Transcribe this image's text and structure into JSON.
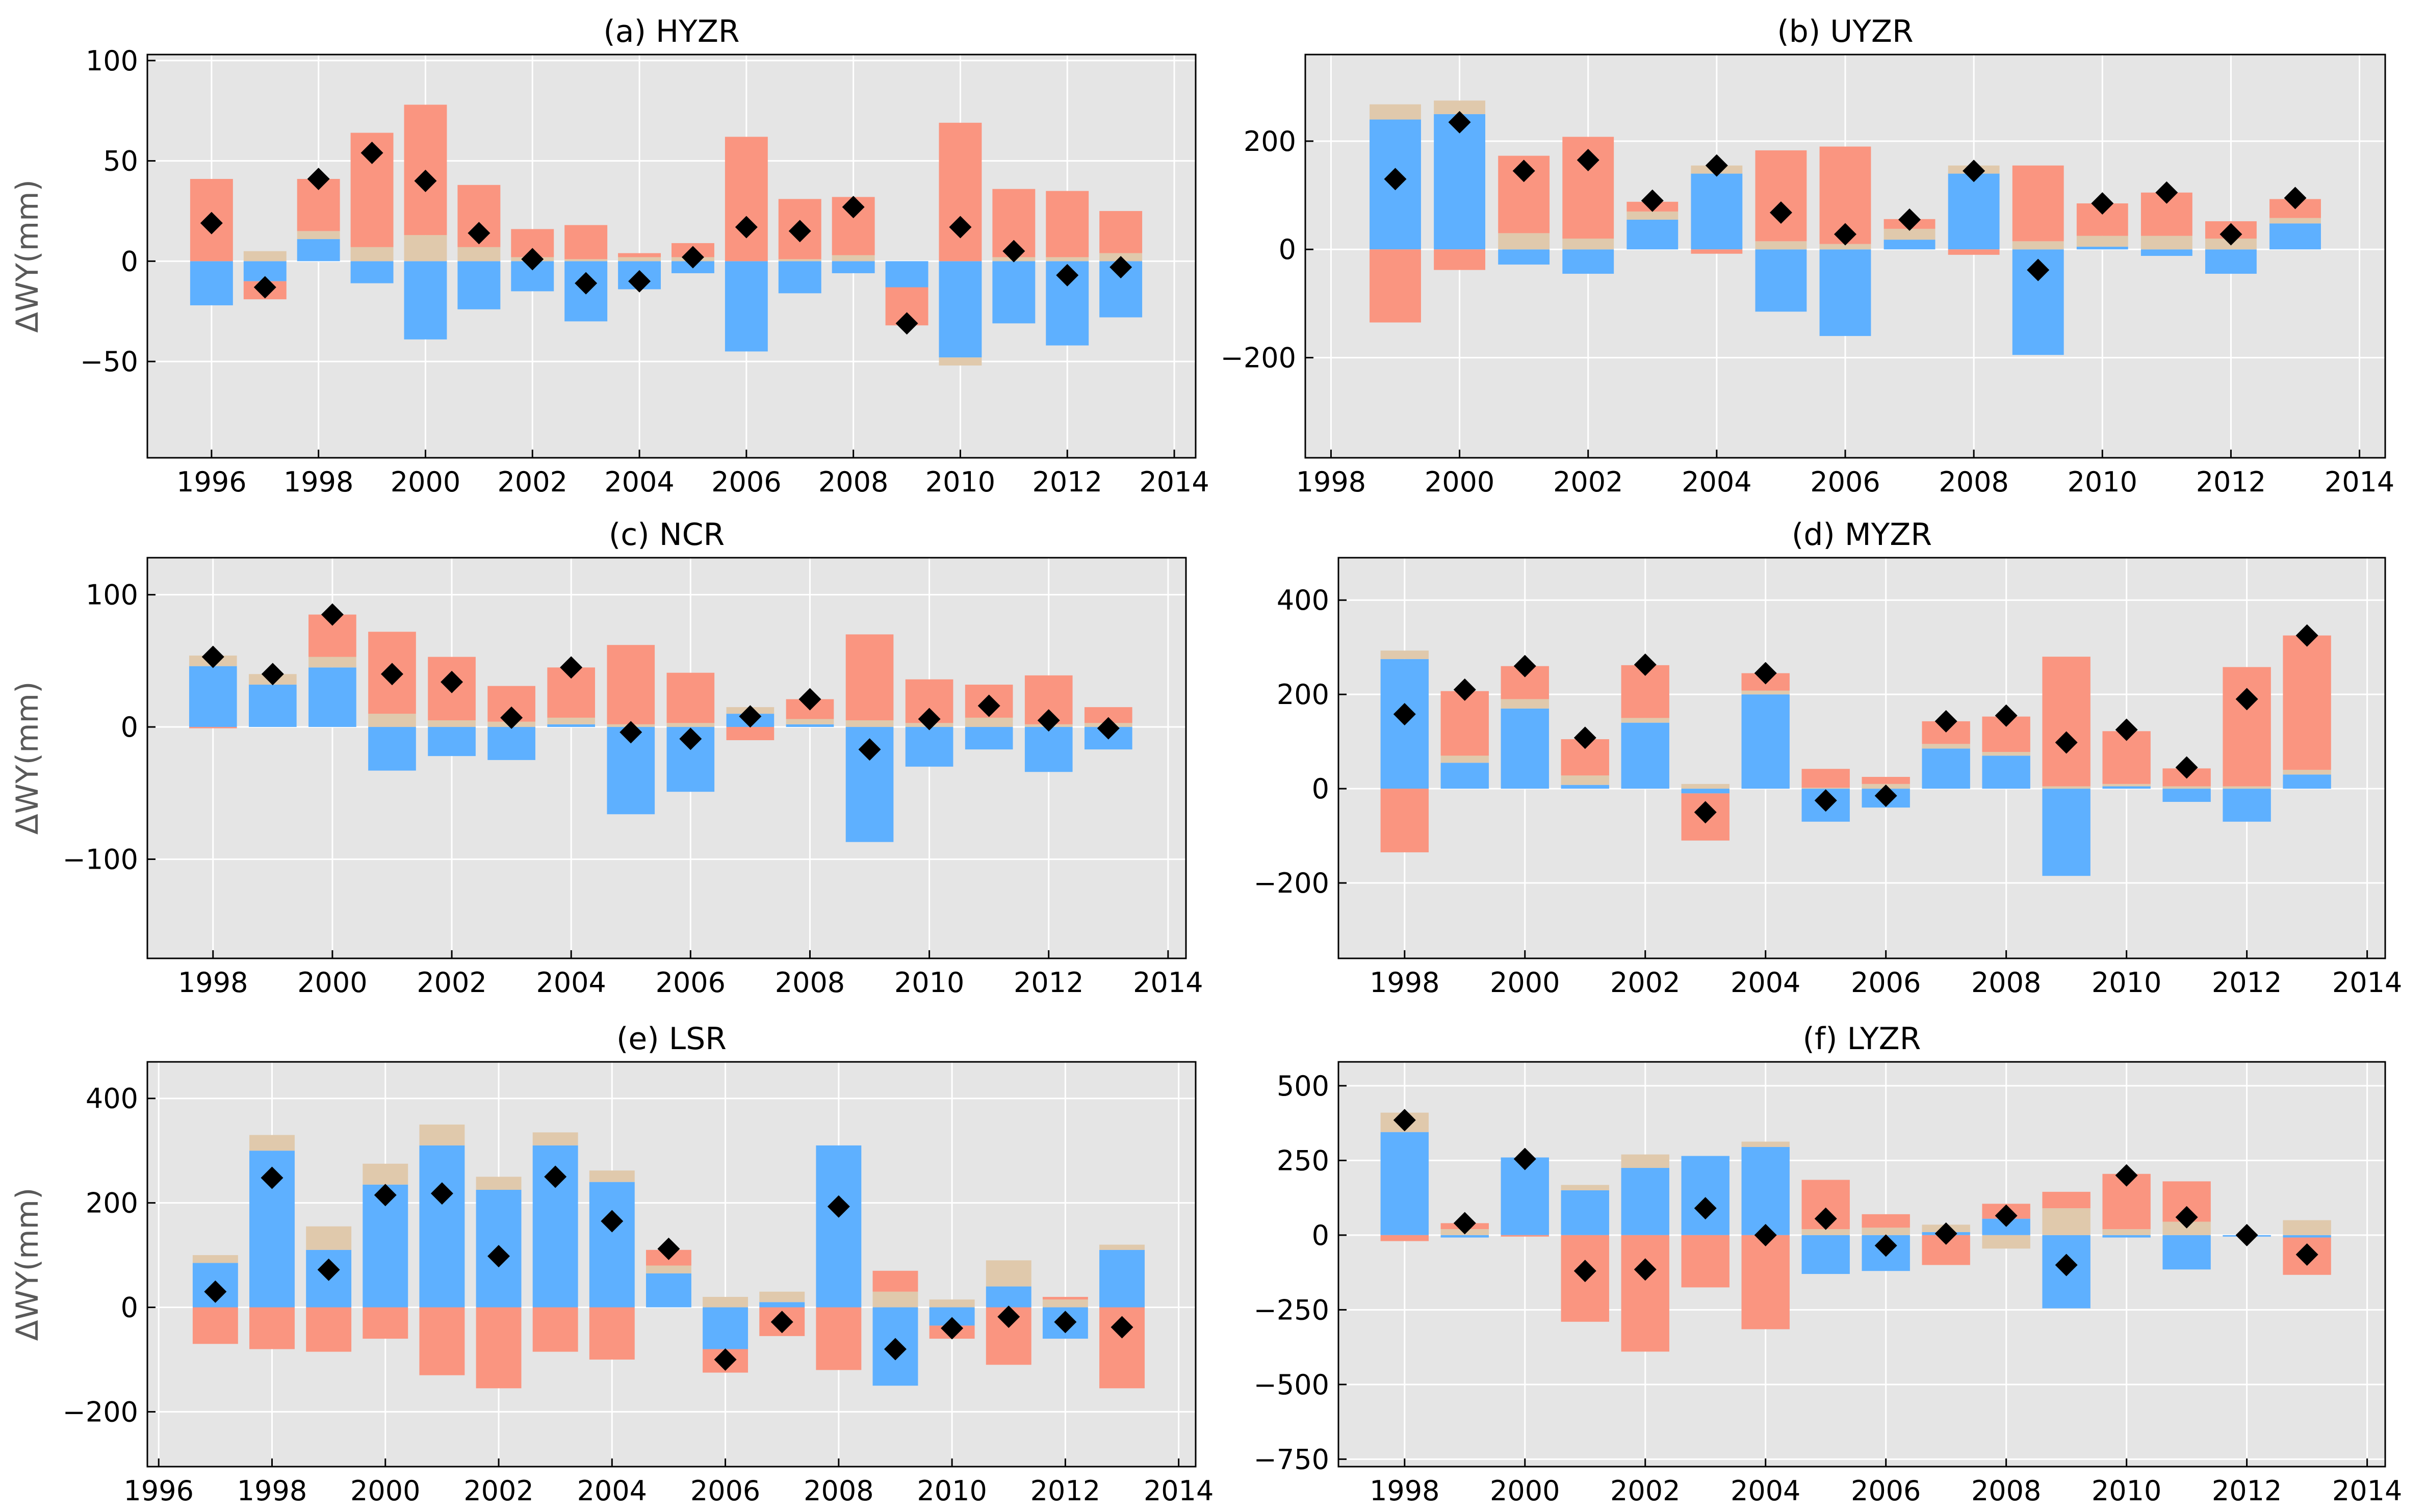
{
  "colors": {
    "background": "#e5e5e5",
    "grid": "#ffffff",
    "blue": "#5eb0ff",
    "red": "#fa9580",
    "tan": "#e0c9ac",
    "marker": "#000000"
  },
  "chart_data": [
    {
      "type": "bar",
      "stacked": true,
      "title": "(a) HYZR",
      "ylabel": "ΔWY(mm)",
      "xlim": [
        1994.8,
        2014.4
      ],
      "ylim": [
        -98,
        103
      ],
      "xticks": [
        1996,
        1998,
        2000,
        2002,
        2004,
        2006,
        2008,
        2010,
        2012,
        2014
      ],
      "yticks": [
        -50,
        0,
        50,
        100
      ],
      "x": [
        1996,
        1997,
        1998,
        1999,
        2000,
        2001,
        2002,
        2003,
        2004,
        2005,
        2006,
        2007,
        2008,
        2009,
        2010,
        2011,
        2012,
        2013
      ],
      "series": [
        {
          "color": "blue",
          "values": [
            -22,
            -10,
            11,
            -11,
            -39,
            -24,
            -15,
            -30,
            -14,
            -6,
            -45,
            -16,
            -6,
            -13,
            -48,
            -31,
            -42,
            -28
          ]
        },
        {
          "color": "tan",
          "values": [
            0,
            5,
            4,
            7,
            13,
            7,
            2,
            1,
            2,
            2,
            0,
            1,
            3,
            0,
            -4,
            2,
            2,
            4
          ]
        },
        {
          "color": "red",
          "values": [
            41,
            -9,
            26,
            57,
            65,
            31,
            14,
            17,
            2,
            7,
            62,
            30,
            29,
            -19,
            69,
            34,
            33,
            21
          ]
        },
        {
          "type": "scatter",
          "color": "marker",
          "values": [
            19,
            -13,
            41,
            54,
            40,
            14,
            1,
            -11,
            -10,
            2,
            17,
            15,
            27,
            -31,
            17,
            5,
            -7,
            -3
          ]
        }
      ]
    },
    {
      "type": "bar",
      "stacked": true,
      "title": "(b) UYZR",
      "ylabel": "",
      "xlim": [
        1997.6,
        2014.4
      ],
      "ylim": [
        -385,
        360
      ],
      "xticks": [
        1998,
        2000,
        2002,
        2004,
        2006,
        2008,
        2010,
        2012,
        2014
      ],
      "yticks": [
        -200,
        0,
        200
      ],
      "x": [
        1999,
        2000,
        2001,
        2002,
        2003,
        2004,
        2005,
        2006,
        2007,
        2008,
        2009,
        2010,
        2011,
        2012,
        2013
      ],
      "series": [
        {
          "color": "blue",
          "values": [
            240,
            250,
            -28,
            -45,
            55,
            140,
            -115,
            -160,
            18,
            140,
            -195,
            5,
            -12,
            -45,
            48
          ]
        },
        {
          "color": "tan",
          "values": [
            28,
            25,
            30,
            20,
            15,
            15,
            15,
            10,
            20,
            15,
            15,
            20,
            25,
            20,
            10
          ]
        },
        {
          "color": "red",
          "values": [
            -135,
            -38,
            143,
            188,
            18,
            -8,
            168,
            180,
            18,
            -10,
            140,
            60,
            80,
            32,
            35
          ]
        },
        {
          "type": "scatter",
          "color": "marker",
          "values": [
            130,
            235,
            145,
            165,
            90,
            155,
            68,
            28,
            55,
            145,
            -38,
            85,
            105,
            28,
            95
          ]
        }
      ]
    },
    {
      "type": "bar",
      "stacked": true,
      "title": "(c) NCR",
      "ylabel": "ΔWY(mm)",
      "xlim": [
        1996.9,
        2014.3
      ],
      "ylim": [
        -175,
        128
      ],
      "xticks": [
        1998,
        2000,
        2002,
        2004,
        2006,
        2008,
        2010,
        2012,
        2014
      ],
      "yticks": [
        -100,
        0,
        100
      ],
      "x": [
        1998,
        1999,
        2000,
        2001,
        2002,
        2003,
        2004,
        2005,
        2006,
        2007,
        2008,
        2009,
        2010,
        2011,
        2012,
        2013
      ],
      "series": [
        {
          "color": "blue",
          "values": [
            46,
            32,
            45,
            -33,
            -22,
            -25,
            2,
            -66,
            -49,
            10,
            2,
            -87,
            -30,
            -17,
            -34,
            -17
          ]
        },
        {
          "color": "tan",
          "values": [
            8,
            8,
            8,
            10,
            5,
            4,
            5,
            2,
            3,
            5,
            4,
            5,
            3,
            7,
            2,
            3
          ]
        },
        {
          "color": "red",
          "values": [
            -1,
            0,
            32,
            62,
            48,
            27,
            38,
            60,
            38,
            -10,
            15,
            65,
            33,
            25,
            37,
            12
          ]
        },
        {
          "type": "scatter",
          "color": "marker",
          "values": [
            53,
            40,
            85,
            40,
            34,
            7,
            45,
            -4,
            -9,
            8,
            21,
            -17,
            6,
            16,
            5,
            -1
          ]
        }
      ]
    },
    {
      "type": "bar",
      "stacked": true,
      "title": "(d) MYZR",
      "ylabel": "",
      "xlim": [
        1996.9,
        2014.3
      ],
      "ylim": [
        -360,
        490
      ],
      "xticks": [
        1998,
        2000,
        2002,
        2004,
        2006,
        2008,
        2010,
        2012,
        2014
      ],
      "yticks": [
        -200,
        0,
        200,
        400
      ],
      "x": [
        1998,
        1999,
        2000,
        2001,
        2002,
        2003,
        2004,
        2005,
        2006,
        2007,
        2008,
        2009,
        2010,
        2011,
        2012,
        2013
      ],
      "series": [
        {
          "color": "blue",
          "values": [
            275,
            55,
            170,
            8,
            140,
            -10,
            200,
            -70,
            -40,
            85,
            70,
            -185,
            5,
            -28,
            -70,
            30
          ]
        },
        {
          "color": "tan",
          "values": [
            18,
            15,
            20,
            20,
            10,
            10,
            8,
            2,
            10,
            10,
            8,
            5,
            5,
            5,
            5,
            10
          ]
        },
        {
          "color": "red",
          "values": [
            -135,
            137,
            70,
            77,
            112,
            -100,
            37,
            40,
            15,
            48,
            75,
            275,
            112,
            38,
            253,
            285
          ]
        },
        {
          "type": "scatter",
          "color": "marker",
          "values": [
            158,
            210,
            260,
            108,
            263,
            -50,
            245,
            -25,
            -15,
            143,
            155,
            98,
            125,
            45,
            190,
            325
          ]
        }
      ]
    },
    {
      "type": "bar",
      "stacked": true,
      "title": "(e) LSR",
      "ylabel": "ΔWY(mm)",
      "xlim": [
        1995.8,
        2014.3
      ],
      "ylim": [
        -305,
        470
      ],
      "xticks": [
        1996,
        1998,
        2000,
        2002,
        2004,
        2006,
        2008,
        2010,
        2012,
        2014
      ],
      "yticks": [
        -200,
        0,
        200,
        400
      ],
      "x": [
        1997,
        1998,
        1999,
        2000,
        2001,
        2002,
        2003,
        2004,
        2005,
        2006,
        2007,
        2008,
        2009,
        2010,
        2011,
        2012,
        2013
      ],
      "series": [
        {
          "color": "blue",
          "values": [
            85,
            300,
            110,
            235,
            310,
            225,
            310,
            240,
            65,
            -80,
            10,
            310,
            -150,
            -35,
            40,
            -60,
            110
          ]
        },
        {
          "color": "tan",
          "values": [
            15,
            30,
            45,
            40,
            40,
            25,
            25,
            22,
            15,
            20,
            20,
            0,
            30,
            15,
            50,
            15,
            10
          ]
        },
        {
          "color": "red",
          "values": [
            -70,
            -80,
            -85,
            -60,
            -130,
            -155,
            -85,
            -100,
            30,
            -45,
            -55,
            -120,
            40,
            -25,
            -110,
            5,
            -155
          ]
        },
        {
          "type": "scatter",
          "color": "marker",
          "values": [
            30,
            248,
            72,
            215,
            218,
            98,
            250,
            165,
            112,
            -100,
            -28,
            193,
            -80,
            -40,
            -18,
            -28,
            -38
          ]
        }
      ]
    },
    {
      "type": "bar",
      "stacked": true,
      "title": "(f) LYZR",
      "ylabel": "",
      "xlim": [
        1996.9,
        2014.3
      ],
      "ylim": [
        -775,
        580
      ],
      "xticks": [
        1998,
        2000,
        2002,
        2004,
        2006,
        2008,
        2010,
        2012,
        2014
      ],
      "yticks": [
        -750,
        -500,
        -250,
        0,
        250,
        500
      ],
      "x": [
        1998,
        1999,
        2000,
        2001,
        2002,
        2003,
        2004,
        2005,
        2006,
        2007,
        2008,
        2009,
        2010,
        2011,
        2012,
        2013
      ],
      "series": [
        {
          "color": "blue",
          "values": [
            345,
            -8,
            260,
            150,
            225,
            265,
            295,
            -130,
            -120,
            10,
            55,
            -245,
            -8,
            -115,
            -5,
            -8
          ]
        },
        {
          "color": "tan",
          "values": [
            65,
            20,
            0,
            18,
            45,
            0,
            18,
            20,
            25,
            25,
            -45,
            90,
            20,
            45,
            0,
            50
          ]
        },
        {
          "color": "red",
          "values": [
            -20,
            20,
            -5,
            -290,
            -390,
            -175,
            -315,
            165,
            45,
            -100,
            50,
            55,
            185,
            135,
            0,
            -125
          ]
        },
        {
          "type": "scatter",
          "color": "marker",
          "values": [
            385,
            40,
            255,
            -120,
            -115,
            90,
            0,
            55,
            -35,
            5,
            65,
            -100,
            200,
            60,
            0,
            -65
          ]
        }
      ]
    }
  ]
}
